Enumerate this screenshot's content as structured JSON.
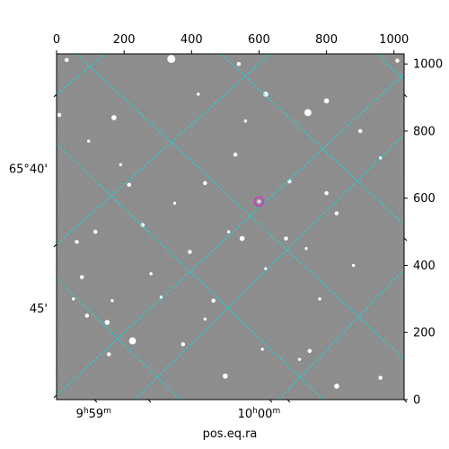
{
  "chart_data": {
    "type": "image",
    "title": "",
    "pixel_axes": {
      "x_ticks": [
        0,
        200,
        400,
        600,
        800,
        1000
      ],
      "x_tick_labels": [
        "0",
        "200",
        "400",
        "600",
        "800",
        "1000"
      ],
      "xlim": [
        0,
        1030
      ],
      "y_ticks": [
        0,
        200,
        400,
        600,
        800,
        1000
      ],
      "y_tick_labels": [
        "0",
        "200",
        "400",
        "600",
        "800",
        "1000"
      ],
      "ylim": [
        0,
        1030
      ]
    },
    "world_axes": {
      "ra_ticks": [
        {
          "label_h": "9",
          "label_h_unit": "h",
          "label_m": "59",
          "label_m_unit": "m",
          "x": 110
        },
        {
          "label_h": "10",
          "label_h_unit": "h",
          "label_m": "00",
          "label_m_unit": "m",
          "x": 600
        }
      ],
      "dec_ticks": [
        {
          "label": "65°40'",
          "y": 687
        },
        {
          "label": "45'",
          "y": 272
        }
      ],
      "xlabel": "pos.eq.ra",
      "ylabel": ""
    },
    "grid": {
      "color": "#00e5e5",
      "style": "dashed",
      "shown": true
    },
    "marker": {
      "x": 600,
      "y": 590,
      "color": "#c040c0"
    },
    "background_color": "#7a7a7a",
    "stars": [
      {
        "x": 340,
        "y": 1015,
        "r": 7
      },
      {
        "x": 30,
        "y": 1012,
        "r": 3
      },
      {
        "x": 540,
        "y": 1000,
        "r": 3
      },
      {
        "x": 620,
        "y": 910,
        "r": 4
      },
      {
        "x": 800,
        "y": 890,
        "r": 4
      },
      {
        "x": 745,
        "y": 855,
        "r": 6
      },
      {
        "x": 170,
        "y": 840,
        "r": 4
      },
      {
        "x": 8,
        "y": 848,
        "r": 3
      },
      {
        "x": 420,
        "y": 910,
        "r": 2
      },
      {
        "x": 560,
        "y": 830,
        "r": 2
      },
      {
        "x": 900,
        "y": 800,
        "r": 3
      },
      {
        "x": 95,
        "y": 770,
        "r": 2
      },
      {
        "x": 530,
        "y": 730,
        "r": 3
      },
      {
        "x": 690,
        "y": 650,
        "r": 3
      },
      {
        "x": 440,
        "y": 645,
        "r": 3
      },
      {
        "x": 215,
        "y": 640,
        "r": 3
      },
      {
        "x": 800,
        "y": 615,
        "r": 3
      },
      {
        "x": 830,
        "y": 555,
        "r": 3
      },
      {
        "x": 510,
        "y": 500,
        "r": 2
      },
      {
        "x": 550,
        "y": 480,
        "r": 4
      },
      {
        "x": 680,
        "y": 480,
        "r": 3
      },
      {
        "x": 255,
        "y": 520,
        "r": 3
      },
      {
        "x": 115,
        "y": 500,
        "r": 3
      },
      {
        "x": 60,
        "y": 470,
        "r": 3
      },
      {
        "x": 395,
        "y": 440,
        "r": 3
      },
      {
        "x": 620,
        "y": 390,
        "r": 2
      },
      {
        "x": 740,
        "y": 450,
        "r": 2
      },
      {
        "x": 280,
        "y": 375,
        "r": 2
      },
      {
        "x": 75,
        "y": 365,
        "r": 3
      },
      {
        "x": 310,
        "y": 305,
        "r": 2
      },
      {
        "x": 50,
        "y": 300,
        "r": 2
      },
      {
        "x": 165,
        "y": 295,
        "r": 2
      },
      {
        "x": 465,
        "y": 295,
        "r": 3
      },
      {
        "x": 780,
        "y": 300,
        "r": 2
      },
      {
        "x": 90,
        "y": 250,
        "r": 3
      },
      {
        "x": 150,
        "y": 230,
        "r": 4
      },
      {
        "x": 440,
        "y": 240,
        "r": 2
      },
      {
        "x": 225,
        "y": 175,
        "r": 6
      },
      {
        "x": 375,
        "y": 165,
        "r": 3
      },
      {
        "x": 610,
        "y": 150,
        "r": 2
      },
      {
        "x": 750,
        "y": 145,
        "r": 3
      },
      {
        "x": 155,
        "y": 135,
        "r": 3
      },
      {
        "x": 500,
        "y": 70,
        "r": 4
      },
      {
        "x": 830,
        "y": 40,
        "r": 4
      },
      {
        "x": 960,
        "y": 65,
        "r": 3
      },
      {
        "x": 1010,
        "y": 1010,
        "r": 3
      },
      {
        "x": 720,
        "y": 120,
        "r": 2
      },
      {
        "x": 350,
        "y": 585,
        "r": 2
      },
      {
        "x": 190,
        "y": 700,
        "r": 2
      },
      {
        "x": 960,
        "y": 720,
        "r": 2
      },
      {
        "x": 880,
        "y": 400,
        "r": 2
      }
    ]
  }
}
